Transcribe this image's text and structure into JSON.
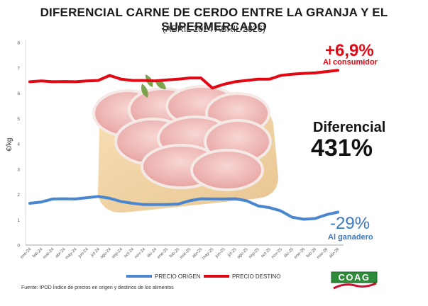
{
  "header": {
    "title": "DIFERENCIAL CARNE DE CERDO ENTRE LA GRANJA Y EL SUPERMERCADO",
    "subtitle": "(ABRIL 2024 ABRIL 2026)"
  },
  "annotations": {
    "consumer_change": "+6,9%",
    "consumer_label": "Al consumidor",
    "differential_label": "Diferencial",
    "differential_value": "431%",
    "farmer_change": "-29%",
    "farmer_label": "Al ganadero"
  },
  "legend": {
    "origin": "PRECIO ORIGEN",
    "destination": "PRECIO DESTINO"
  },
  "source": "Fuente: IPOD Índice de precios en origen y destinos de los alimentos",
  "logo_text": "COAG",
  "colors": {
    "origin": "#4a86d0",
    "destination": "#e30613",
    "logo_green": "#2e8b3a",
    "logo_red": "#c8102e"
  },
  "chart_data": {
    "type": "line",
    "ylabel": "€/kg",
    "xlabel": "",
    "ylim": [
      0,
      8
    ],
    "yticks": [
      "0",
      "1",
      "2",
      "3",
      "4",
      "5",
      "6",
      "7",
      "8"
    ],
    "grid": false,
    "legend_position": "bottom",
    "categories": [
      "ene-24",
      "feb-24",
      "mar-24",
      "abr-24",
      "may-24",
      "jun-24",
      "jul-24",
      "ago-24",
      "sep-24",
      "oct-24",
      "nov-24",
      "dic-24",
      "ene-25",
      "feb-25",
      "mar-25",
      "abr-25",
      "may-25",
      "jun-25",
      "jul-25",
      "ago-25",
      "sep-25",
      "oct-25",
      "nov-25",
      "dic-25",
      "ene-26",
      "feb-26",
      "mar-26",
      "abr-26"
    ],
    "series": [
      {
        "name": "PRECIO ORIGEN",
        "values": [
          1.65,
          1.7,
          1.82,
          1.83,
          1.82,
          1.87,
          1.92,
          1.85,
          1.72,
          1.65,
          1.6,
          1.6,
          1.6,
          1.62,
          1.75,
          1.83,
          1.82,
          1.82,
          1.83,
          1.75,
          1.55,
          1.48,
          1.35,
          1.1,
          1.02,
          1.05,
          1.2,
          1.3
        ]
      },
      {
        "name": "PRECIO DESTINO",
        "values": [
          6.45,
          6.48,
          6.45,
          6.46,
          6.45,
          6.48,
          6.5,
          6.7,
          6.55,
          6.5,
          6.5,
          6.48,
          6.52,
          6.55,
          6.6,
          6.6,
          6.2,
          6.35,
          6.45,
          6.5,
          6.55,
          6.55,
          6.7,
          6.75,
          6.78,
          6.8,
          6.85,
          6.9
        ]
      }
    ]
  }
}
